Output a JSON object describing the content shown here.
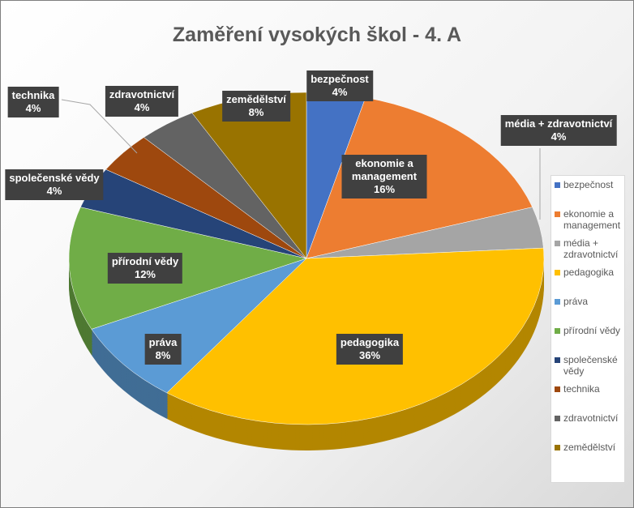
{
  "chart_data": {
    "type": "pie",
    "title": "Zaměření vysokých škol - 4. A",
    "categories": [
      "bezpečnost",
      "ekonomie a management",
      "média + zdravotnictví",
      "pedagogika",
      "práva",
      "přírodní vědy",
      "společenské vědy",
      "technika",
      "zdravotnictví",
      "zemědělství"
    ],
    "values": [
      4,
      16,
      4,
      36,
      8,
      12,
      4,
      4,
      4,
      8
    ],
    "value_labels": [
      "4%",
      "16%",
      "4%",
      "36%",
      "8%",
      "12%",
      "4%",
      "4%",
      "4%",
      "8%"
    ],
    "colors": [
      "#4472c4",
      "#ed7d31",
      "#a5a5a5",
      "#ffc000",
      "#5b9bd5",
      "#70ad47",
      "#264478",
      "#9e480e",
      "#636363",
      "#997300"
    ],
    "legend": "right"
  }
}
